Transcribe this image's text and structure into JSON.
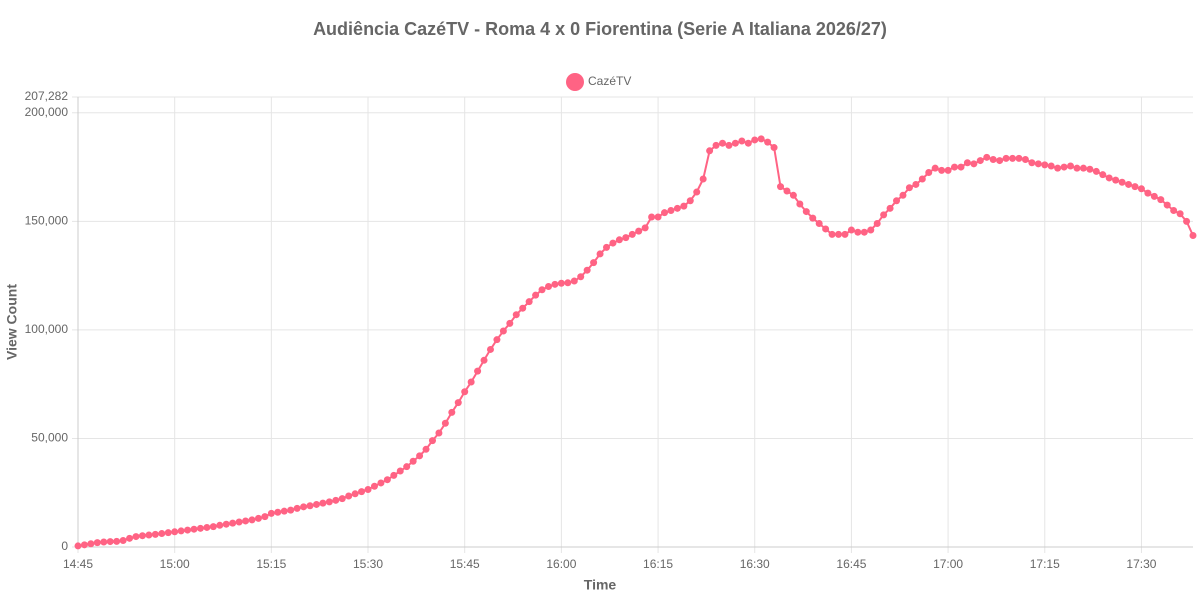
{
  "chart_data": {
    "type": "line",
    "title": "Audiência CazéTV - Roma 4 x 0 Fiorentina (Serie A Italiana 2026/27)",
    "xlabel": "Time",
    "ylabel": "View Count",
    "categories": [
      "14:45",
      null,
      null,
      null,
      null,
      null,
      null,
      null,
      null,
      null,
      null,
      null,
      null,
      null,
      null,
      "15:00",
      null,
      null,
      null,
      null,
      null,
      null,
      null,
      null,
      null,
      null,
      null,
      null,
      null,
      null,
      "15:15",
      null,
      null,
      null,
      null,
      null,
      null,
      null,
      null,
      null,
      null,
      null,
      null,
      null,
      null,
      "15:30",
      null,
      null,
      null,
      null,
      null,
      null,
      null,
      null,
      null,
      null,
      null,
      null,
      null,
      null,
      "15:45",
      null,
      null,
      null,
      null,
      null,
      null,
      null,
      null,
      null,
      null,
      null,
      null,
      null,
      null,
      "16:00",
      null,
      null,
      null,
      null,
      null,
      null,
      null,
      null,
      null,
      null,
      null,
      null,
      null,
      null,
      "16:15",
      null,
      null,
      null,
      null,
      null,
      null,
      null,
      null,
      null,
      null,
      null,
      null,
      null,
      null,
      "16:30",
      null,
      null,
      null,
      null,
      null,
      null,
      null,
      null,
      null,
      null,
      null,
      null,
      null,
      null,
      "16:45",
      null,
      null,
      null,
      null,
      null,
      null,
      null,
      null,
      null,
      null,
      null,
      null,
      null,
      null,
      "17:00",
      null,
      null,
      null,
      null,
      null,
      null,
      null,
      null,
      null,
      null,
      null,
      null,
      null,
      null,
      "17:15",
      null,
      null,
      null,
      null,
      null,
      null,
      null,
      null,
      null,
      null,
      null,
      null,
      null,
      null,
      "17:30",
      null,
      null,
      null,
      null,
      null,
      null,
      null,
      null
    ],
    "series": [
      {
        "name": "CazéTV",
        "color": "#ff6384",
        "values": [
          500,
          1000,
          1500,
          2000,
          2300,
          2500,
          2600,
          3000,
          4000,
          4800,
          5200,
          5500,
          5800,
          6200,
          6600,
          7000,
          7400,
          7800,
          8200,
          8600,
          9000,
          9400,
          10000,
          10500,
          11000,
          11500,
          12000,
          12500,
          13200,
          14000,
          15500,
          16000,
          16500,
          17000,
          17800,
          18500,
          19000,
          19600,
          20200,
          20800,
          21500,
          22300,
          23500,
          24500,
          25500,
          26500,
          28000,
          29500,
          31000,
          33000,
          35000,
          37000,
          39500,
          42000,
          45000,
          49000,
          52500,
          57000,
          62000,
          66500,
          71500,
          76000,
          81000,
          86000,
          91000,
          95500,
          99500,
          103000,
          107000,
          110000,
          113000,
          116000,
          118500,
          120000,
          121000,
          121500,
          121700,
          122500,
          124500,
          127500,
          131000,
          135000,
          138000,
          140000,
          141500,
          142500,
          144000,
          145500,
          147000,
          152000,
          152000,
          154000,
          155000,
          156000,
          157000,
          159500,
          163500,
          169500,
          182500,
          185000,
          186000,
          185000,
          186000,
          187000,
          186000,
          187500,
          188000,
          186500,
          184000,
          166000,
          164000,
          162000,
          158000,
          154500,
          151500,
          149000,
          146500,
          144000,
          144000,
          144000,
          146000,
          145000,
          145000,
          146000,
          149000,
          153000,
          156000,
          159500,
          162000,
          165500,
          167000,
          169500,
          172500,
          174500,
          173500,
          173500,
          175000,
          175000,
          177000,
          176500,
          178000,
          179500,
          178500,
          178000,
          179000,
          179000,
          179000,
          178500,
          177000,
          176500,
          176000,
          175500,
          174500,
          175000,
          175500,
          174500,
          174500,
          174000,
          173000,
          171500,
          170000,
          169000,
          168000,
          167000,
          166000,
          165000,
          163000,
          161500,
          160000,
          157500,
          155000,
          153500,
          150000,
          143500
        ]
      }
    ],
    "ylim": [
      0,
      207282
    ],
    "yticks": [
      0,
      {
        "value": 50000,
        "label": "50,000"
      },
      {
        "value": 100000,
        "label": "100,000"
      },
      {
        "value": 150000,
        "label": "150,000"
      },
      {
        "value": 200000,
        "label": "200,000"
      },
      {
        "value": 207282,
        "label": "207,282"
      }
    ],
    "grid": true,
    "legend": "top"
  }
}
